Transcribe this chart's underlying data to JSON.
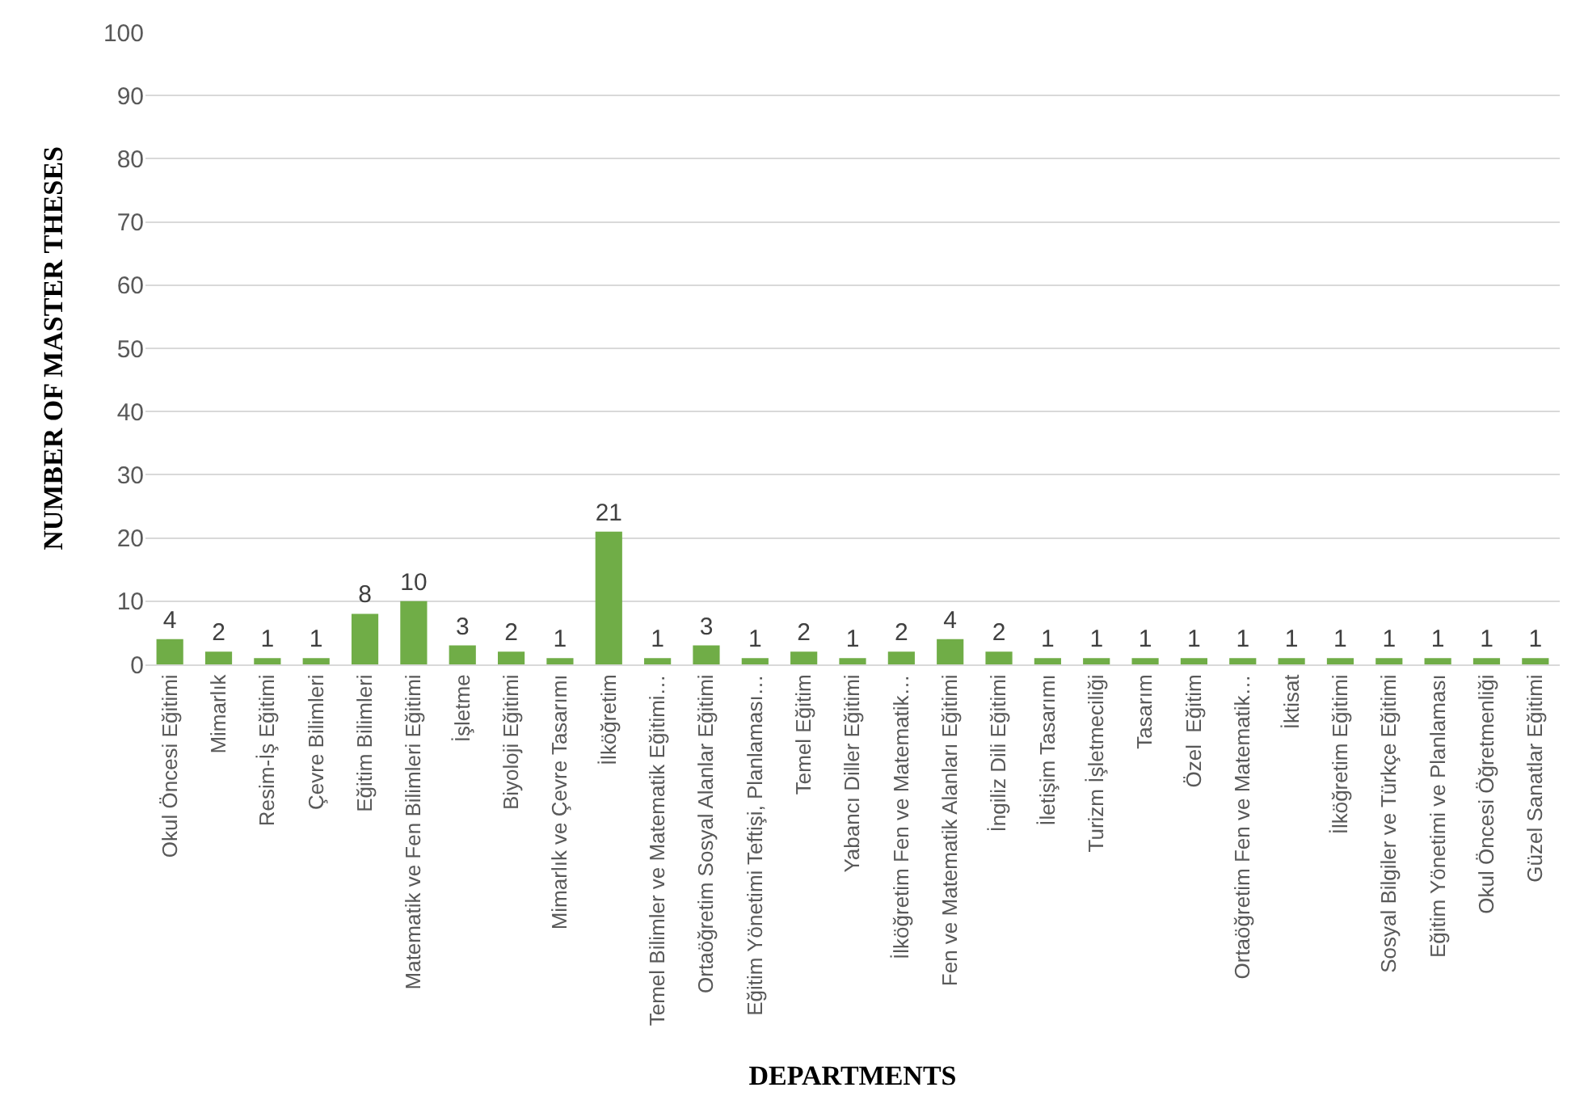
{
  "chart_data": {
    "type": "bar",
    "xlabel": "DEPARTMENTS",
    "ylabel": "NUMBER OF MASTER THESES",
    "categories": [
      "Okul Öncesi Eğitimi",
      "Mimarlık",
      "Resim-İş Eğitimi",
      "Çevre Bilimleri",
      "Eğitim Bilimleri",
      "Matematik ve Fen Bilimleri Eğitimi",
      "İşletme",
      "Biyoloji Eğitimi",
      "Mimarlık ve Çevre Tasarımı",
      "İlköğretim",
      "Temel Bilimler ve Matematik Eğitimi…",
      "Ortaöğretim Sosyal Alanlar Eğitimi",
      "Eğitim Yönetimi Teftişi, Planlaması…",
      "Temel Eğitim",
      "Yabancı Diller Eğitimi",
      "İlköğretim Fen ve Matematik…",
      "Fen ve Matematik Alanları Eğitimi",
      "İngiliz Dili Eğitimi",
      "İletişim Tasarımı",
      "Turizm İşletmeciliği",
      "Tasarım",
      "Özel  Eğitim",
      "Ortaöğretim Fen ve Matematik…",
      "İktisat",
      "İlköğretim Eğitimi",
      "Sosyal Bilgiler ve Türkçe Eğitimi",
      "Eğitim Yönetimi ve Planlaması",
      "Okul Öncesi Öğretmenliği",
      "Güzel Sanatlar Eğitimi"
    ],
    "values": [
      4,
      2,
      1,
      1,
      8,
      10,
      3,
      2,
      1,
      21,
      1,
      3,
      1,
      2,
      1,
      2,
      4,
      2,
      1,
      1,
      1,
      1,
      1,
      1,
      1,
      1,
      1,
      1,
      1
    ],
    "color": "#70ad47",
    "ylim": [
      0,
      100
    ],
    "yticks": [
      0,
      10,
      20,
      30,
      40,
      50,
      60,
      70,
      80,
      90,
      100
    ],
    "grid": "y",
    "data_labels": true,
    "legend": false
  }
}
